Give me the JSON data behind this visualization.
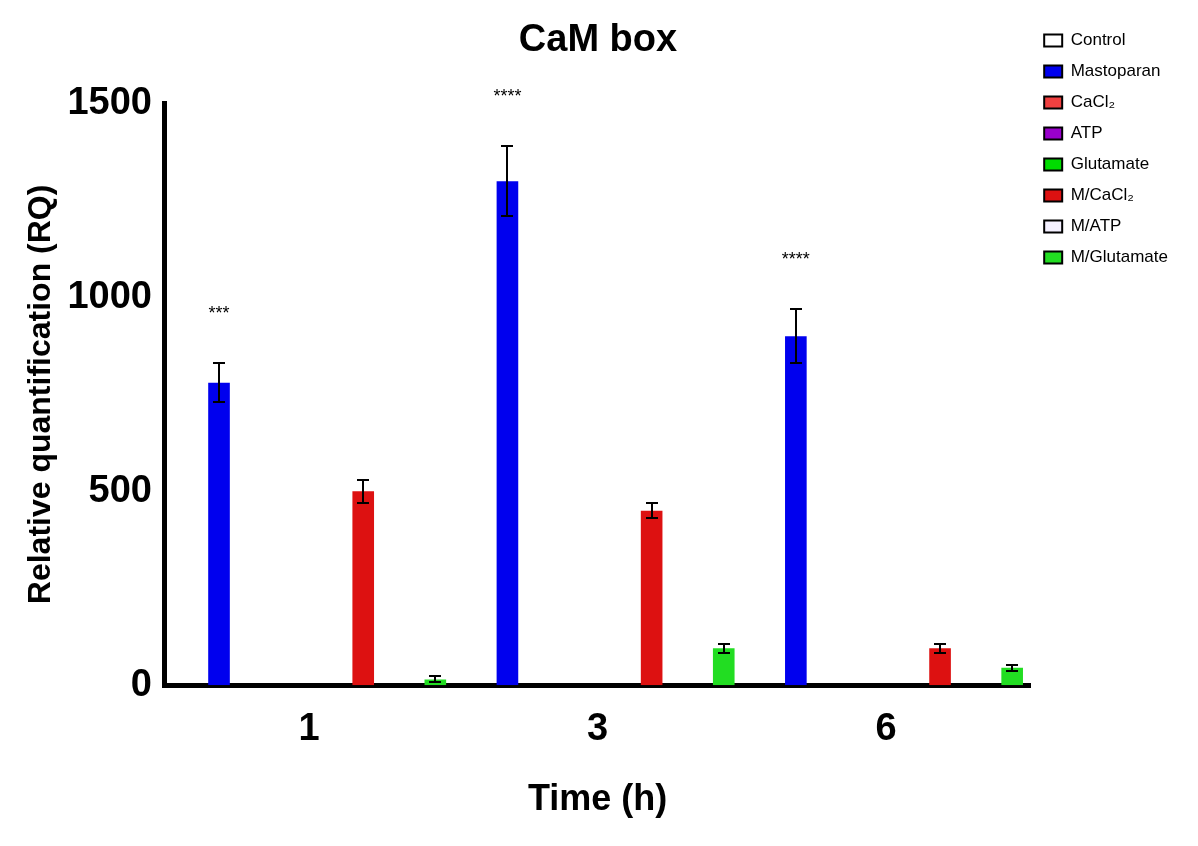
{
  "chart_data": {
    "type": "bar",
    "title": "CaM box",
    "xlabel": "Time (h)",
    "ylabel": "Relative quantification (RQ)",
    "categories": [
      "1",
      "3",
      "6"
    ],
    "series": [
      {
        "name": "Control",
        "color": "#ffffff",
        "values": [
          0,
          0,
          0
        ]
      },
      {
        "name": "Mastoparan",
        "color": "#0000ee",
        "values": [
          780,
          1300,
          900
        ],
        "errors": [
          50,
          90,
          70
        ]
      },
      {
        "name": "CaCl₂",
        "color": "#f04040",
        "values": [
          0,
          0,
          0
        ]
      },
      {
        "name": "ATP",
        "color": "#9900cc",
        "values": [
          0,
          0,
          0
        ]
      },
      {
        "name": "Glutamate",
        "color": "#00dd00",
        "values": [
          0,
          0,
          0
        ]
      },
      {
        "name": "M/CaCl₂",
        "color": "#dd1111",
        "values": [
          500,
          450,
          95
        ],
        "errors": [
          30,
          20,
          12
        ]
      },
      {
        "name": "M/ATP",
        "color": "#f4f0ff",
        "values": [
          0,
          0,
          0
        ]
      },
      {
        "name": "M/Glutamate",
        "color": "#22dd22",
        "values": [
          15,
          95,
          45
        ],
        "errors": [
          8,
          12,
          8
        ]
      }
    ],
    "ylim": [
      0,
      1500
    ],
    "yticks": [
      0,
      500,
      1000,
      1500
    ],
    "grid": false,
    "legend": "top right",
    "annotations": [
      "***",
      "****",
      "****"
    ]
  }
}
